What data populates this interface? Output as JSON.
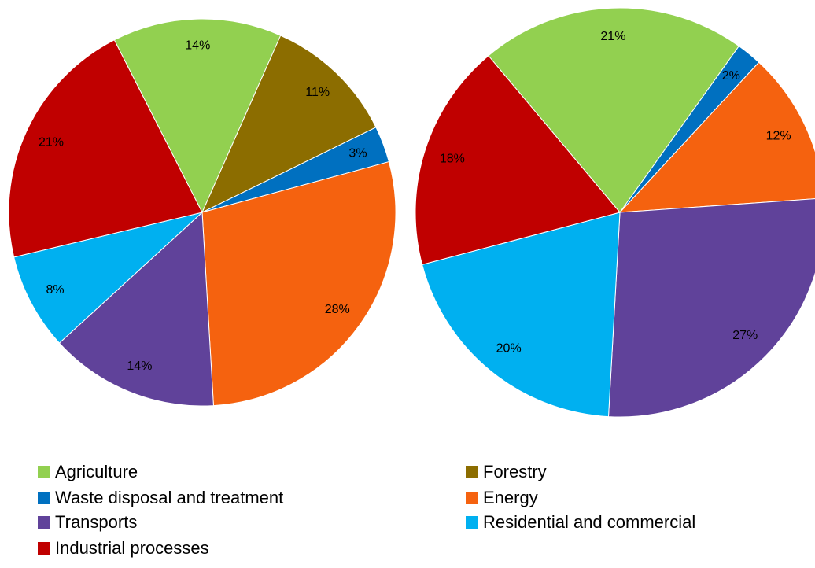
{
  "chart_data": [
    {
      "type": "pie",
      "categories": [
        "Agriculture",
        "Forestry",
        "Waste disposal and treatment",
        "Energy",
        "Transports",
        "Residential and commercial",
        "Industrial processes"
      ],
      "values": [
        14,
        11,
        3,
        28,
        14,
        8,
        21
      ],
      "value_labels": [
        "14%",
        "11%",
        "3%",
        "28%",
        "14%",
        "8%",
        "21%"
      ],
      "colors": [
        "#92d050",
        "#8c6d00",
        "#0070c0",
        "#f5620f",
        "#60429a",
        "#00b0f0",
        "#c00000"
      ]
    },
    {
      "type": "pie",
      "categories": [
        "Agriculture",
        "Waste disposal and treatment",
        "Energy",
        "Transports",
        "Residential and commercial",
        "Industrial processes"
      ],
      "values": [
        21,
        2,
        12,
        27,
        20,
        18
      ],
      "value_labels": [
        "21%",
        "2%",
        "12%",
        "27%",
        "20%",
        "18%"
      ],
      "colors": [
        "#92d050",
        "#0070c0",
        "#f5620f",
        "#60429a",
        "#00b0f0",
        "#c00000"
      ]
    }
  ]
}
